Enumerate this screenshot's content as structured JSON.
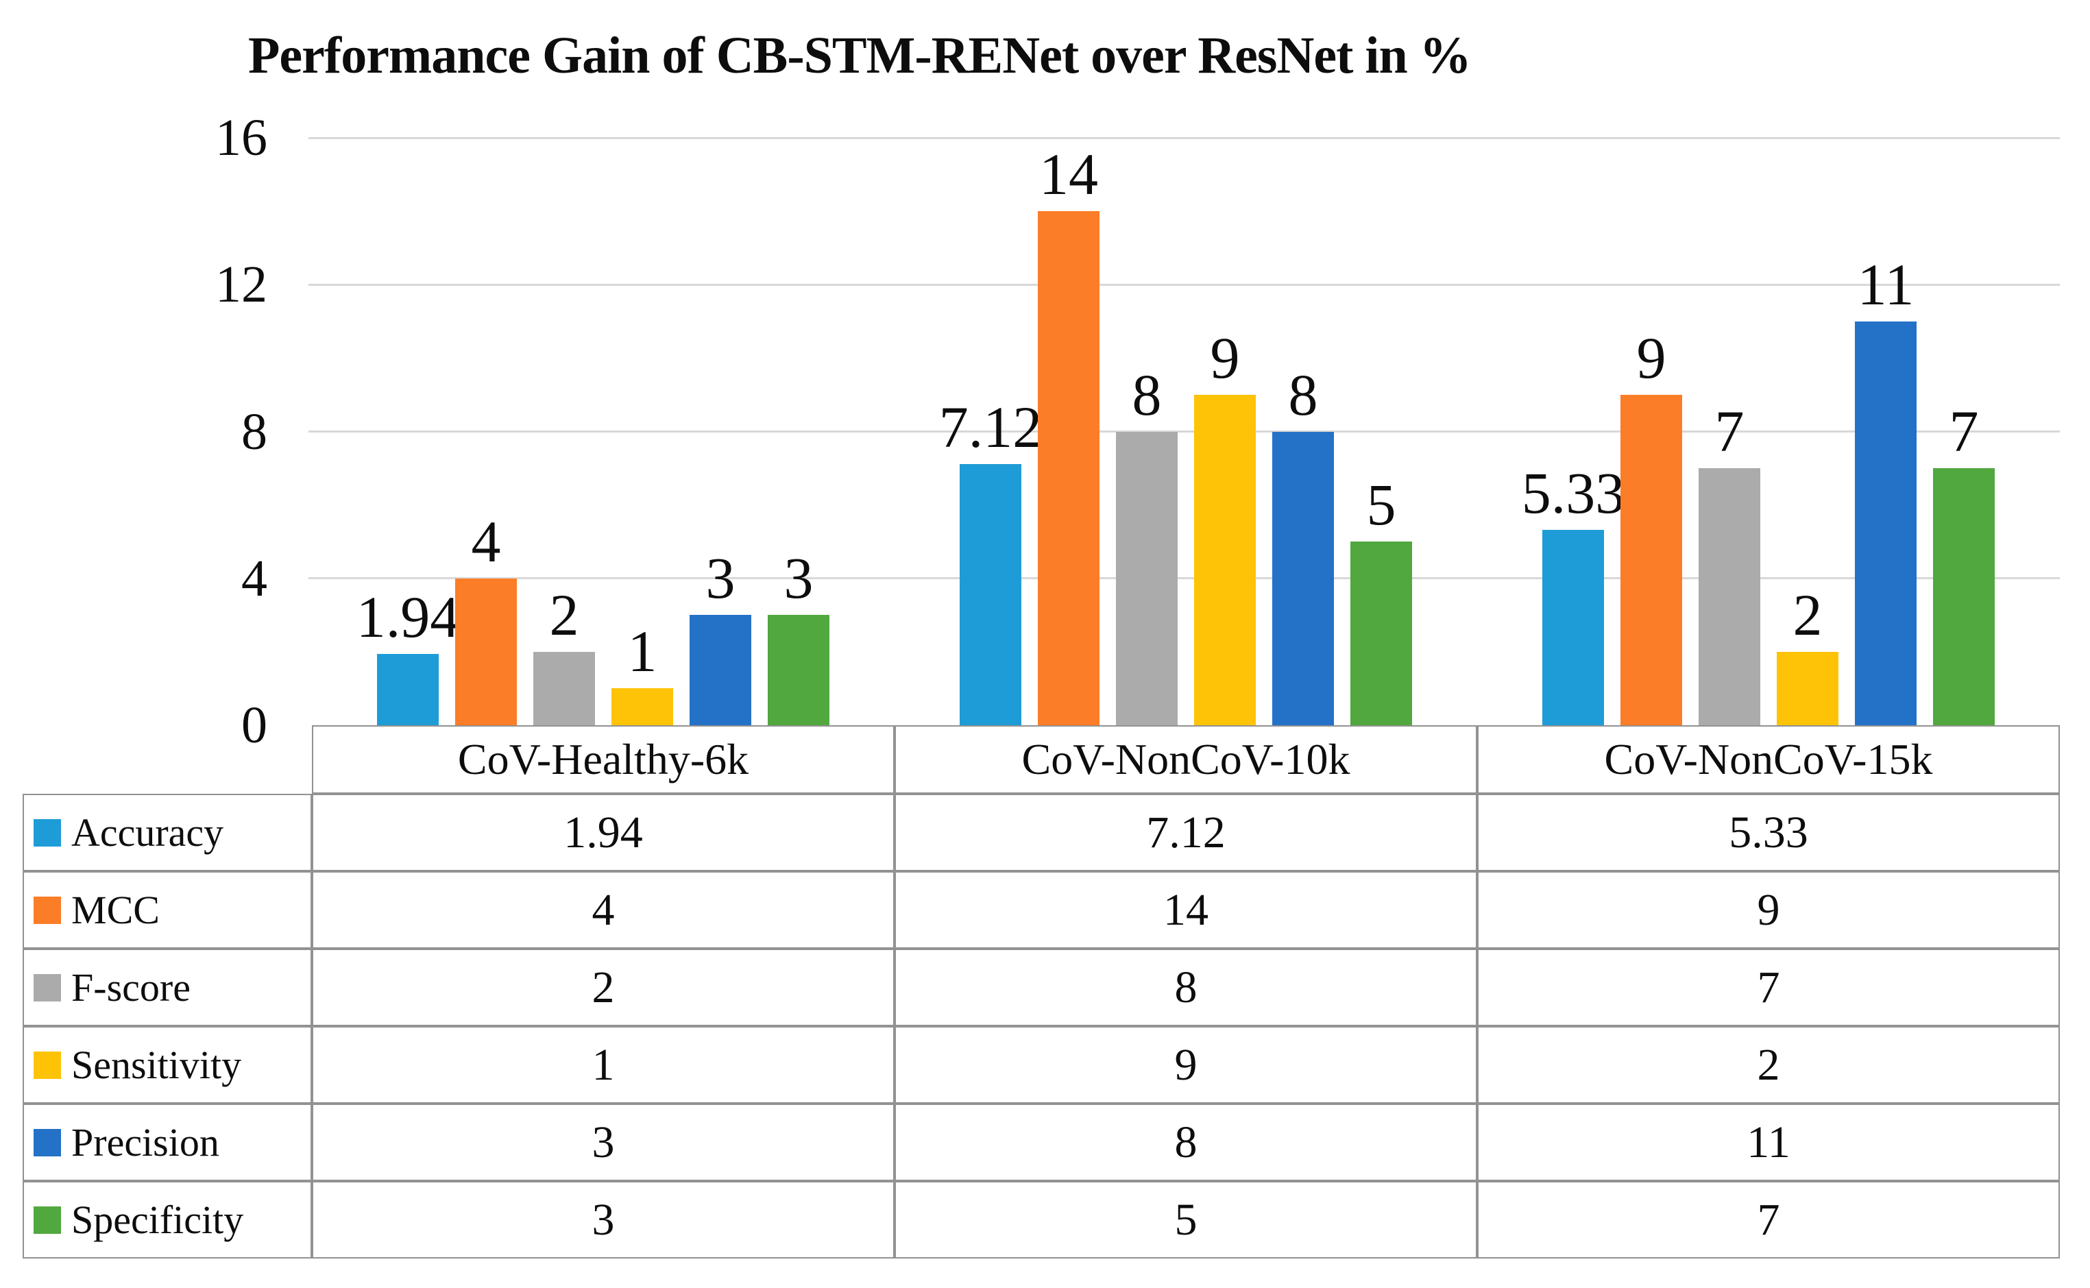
{
  "chart_data": {
    "type": "bar",
    "title": "Performance Gain of CB-STM-RENet over ResNet in %",
    "categories": [
      "CoV-Healthy-6k",
      "CoV-NonCoV-10k",
      "CoV-NonCoV-15k"
    ],
    "series": [
      {
        "name": "Accuracy",
        "color": "#1e9cd7",
        "values": [
          1.94,
          7.12,
          5.33
        ]
      },
      {
        "name": "MCC",
        "color": "#fb7d27",
        "values": [
          4,
          14,
          9
        ]
      },
      {
        "name": "F-score",
        "color": "#ababab",
        "values": [
          2,
          8,
          7
        ]
      },
      {
        "name": "Sensitivity",
        "color": "#fec307",
        "values": [
          1,
          9,
          2
        ]
      },
      {
        "name": "Precision",
        "color": "#2471c8",
        "values": [
          3,
          8,
          11
        ]
      },
      {
        "name": "Specificity",
        "color": "#50a83e",
        "values": [
          3,
          5,
          7
        ]
      }
    ],
    "y_axis": {
      "ticks": [
        0,
        4,
        8,
        12,
        16
      ],
      "min": 0,
      "max": 16
    },
    "gridlines": true,
    "data_labels": true,
    "legend_position": "table-left",
    "data_table": true
  },
  "colors": {
    "gridline": "#d8d8d8",
    "table_border": "#929292",
    "text": "#0d0d0d",
    "background": "#ffffff"
  }
}
